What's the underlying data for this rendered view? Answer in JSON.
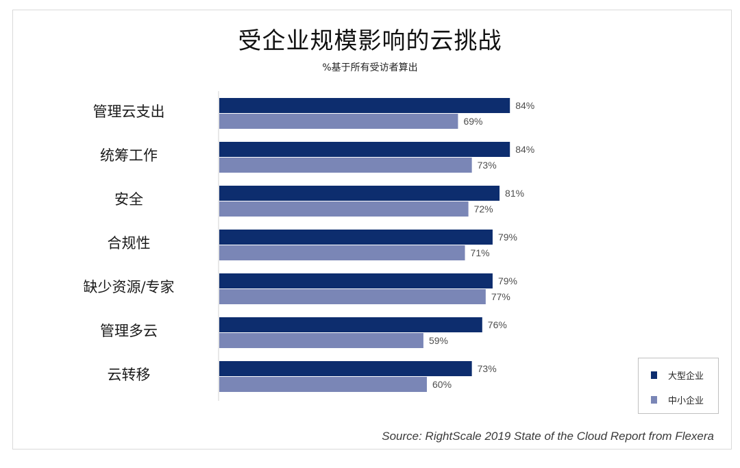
{
  "chart_data": {
    "type": "bar",
    "orientation": "horizontal",
    "title": "受企业规模影响的云挑战",
    "subtitle": "%基于所有受访者算出",
    "categories": [
      "管理云支出",
      "统筹工作",
      "安全",
      "合规性",
      "缺少资源/专家",
      "管理多云",
      "云转移"
    ],
    "series": [
      {
        "name": "大型企业",
        "color": "#0d2d6e",
        "values": [
          84,
          84,
          81,
          79,
          79,
          76,
          73
        ]
      },
      {
        "name": "中小企业",
        "color": "#7a86b6",
        "values": [
          69,
          73,
          72,
          71,
          77,
          59,
          60
        ]
      }
    ],
    "value_suffix": "%",
    "xlim": [
      0,
      100
    ],
    "grid": false,
    "legend_position": "bottom-right",
    "source": "Source: RightScale 2019 State of the Cloud Report from Flexera"
  }
}
